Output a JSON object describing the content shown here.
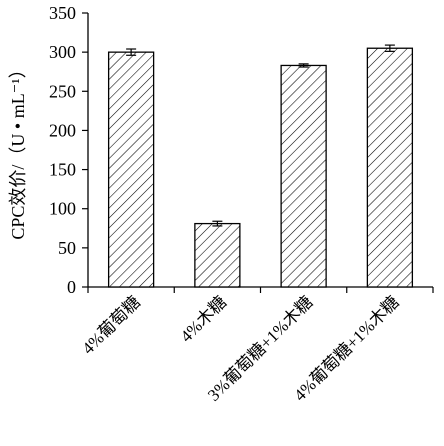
{
  "chart_data": {
    "type": "bar",
    "title": "",
    "xlabel": "",
    "ylabel": "CPC效价/（U • mL⁻¹）",
    "categories": [
      "4%葡萄糖",
      "4%木糖",
      "3%葡萄糖+1%木糖",
      "4%葡萄糖+1%木糖"
    ],
    "values": [
      300,
      81,
      283,
      305
    ],
    "error": [
      4,
      3,
      2,
      4
    ],
    "ylim": [
      0,
      350
    ],
    "yticks": [
      "0",
      "50",
      "100",
      "150",
      "200",
      "250",
      "300",
      "350"
    ],
    "ytick_values": [
      0,
      50,
      100,
      150,
      200,
      250,
      300,
      350
    ],
    "grid": false,
    "bar_fill": "hatched",
    "colors": {
      "bar_stroke": "#000000",
      "hatch": "#000000",
      "axis": "#000000",
      "background": "#ffffff"
    }
  }
}
